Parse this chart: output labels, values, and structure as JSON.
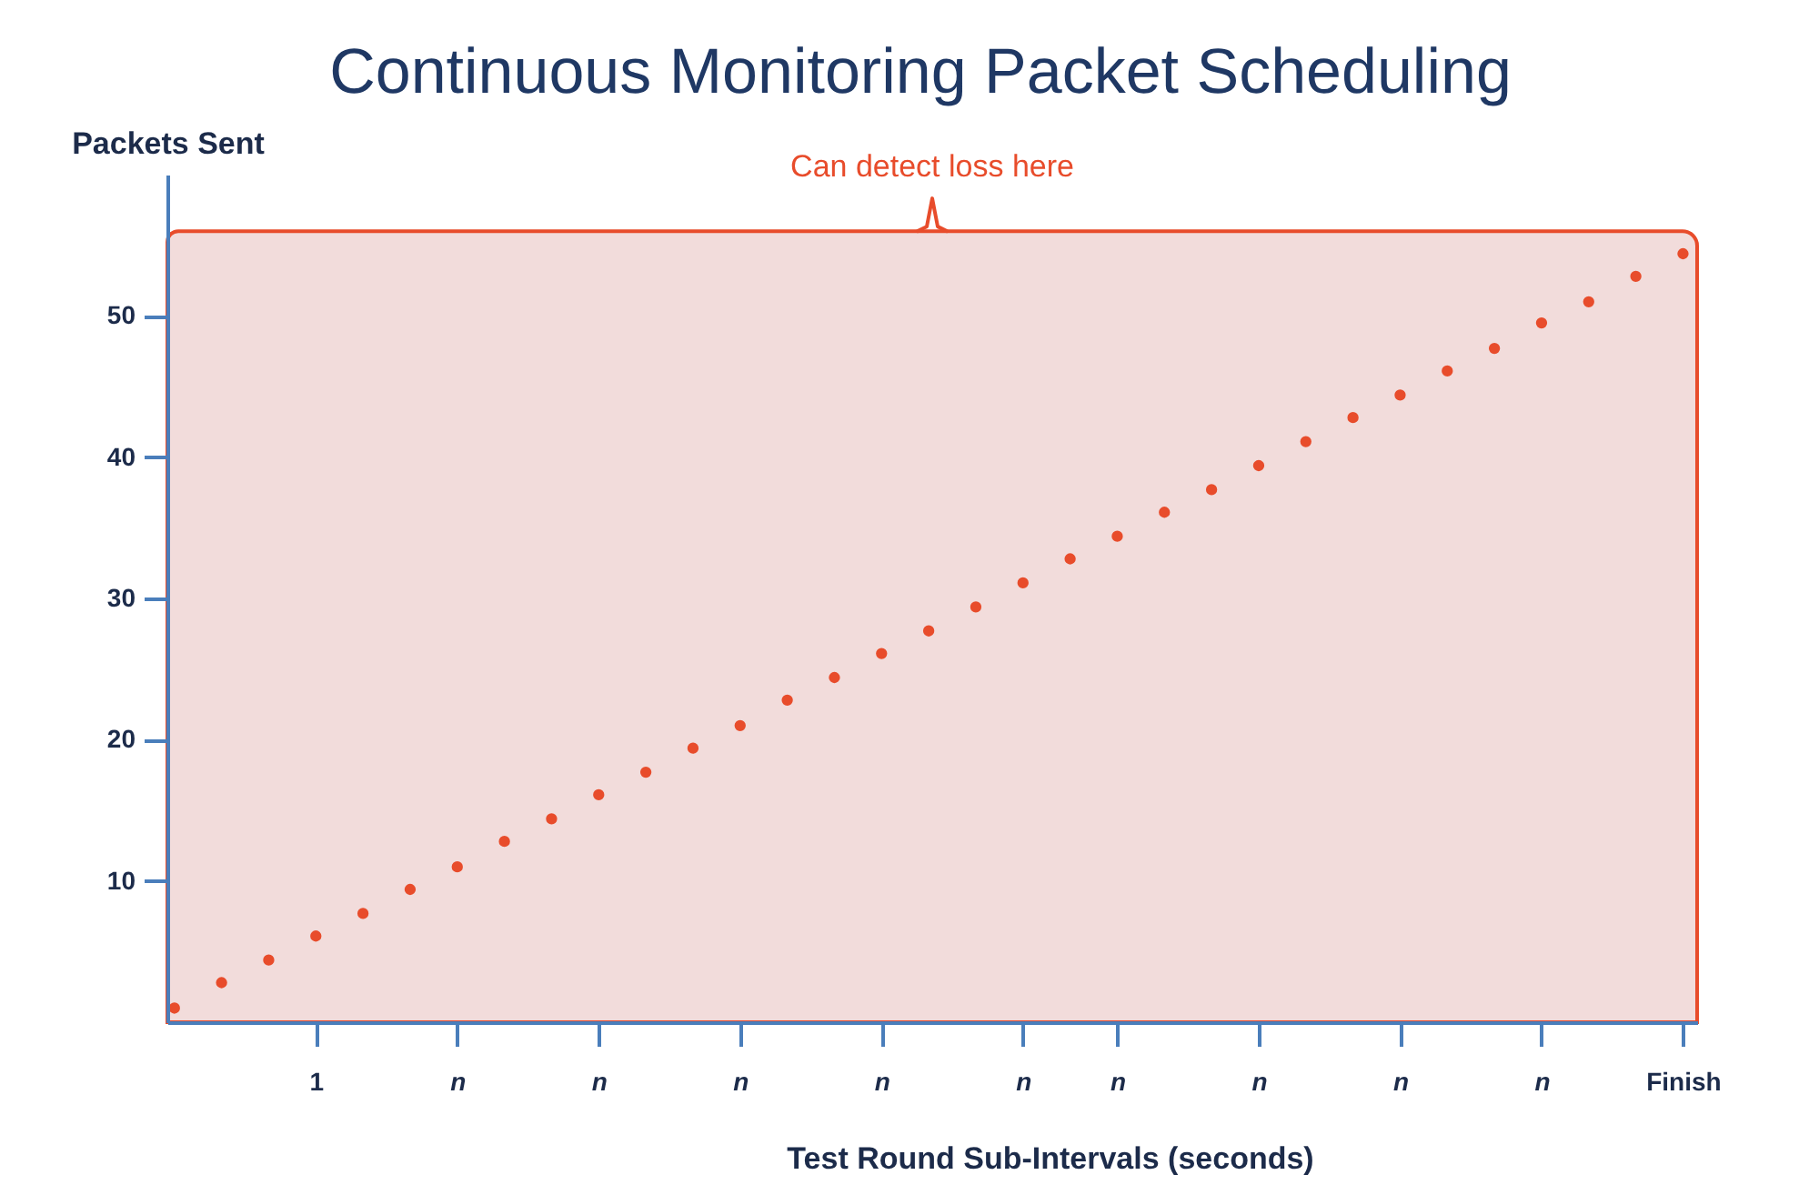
{
  "chart_data": {
    "type": "scatter",
    "title": "Continuous Monitoring Packet Scheduling",
    "xlabel": "Test Round Sub-Intervals (seconds)",
    "ylabel": "Packets Sent",
    "categories": [
      null,
      null,
      null,
      "1",
      null,
      null,
      "n",
      null,
      null,
      "n",
      null,
      null,
      "n",
      null,
      null,
      "n",
      null,
      null,
      "n",
      null,
      "n",
      null,
      null,
      "n",
      null,
      null,
      "n",
      null,
      null,
      "n",
      null,
      null,
      "Finish"
    ],
    "series": [
      {
        "color": "#e84c2b",
        "values": [
          1.0,
          2.8,
          4.4,
          6.1,
          7.7,
          9.4,
          11.0,
          12.8,
          14.4,
          16.1,
          17.7,
          19.4,
          21.0,
          22.8,
          24.4,
          26.1,
          27.7,
          29.4,
          31.1,
          32.8,
          34.4,
          36.1,
          37.7,
          39.4,
          41.1,
          42.8,
          44.4,
          46.1,
          47.7,
          49.5,
          51.0,
          52.8,
          54.4
        ]
      }
    ],
    "ylim": [
      0,
      60
    ],
    "yticks": [
      10,
      20,
      30,
      40,
      50
    ],
    "bands": [
      {
        "axis": "y",
        "from": 0,
        "to": 56,
        "label": "Can detect loss here",
        "color": "#f2dcdb"
      }
    ],
    "marker": "circle"
  }
}
